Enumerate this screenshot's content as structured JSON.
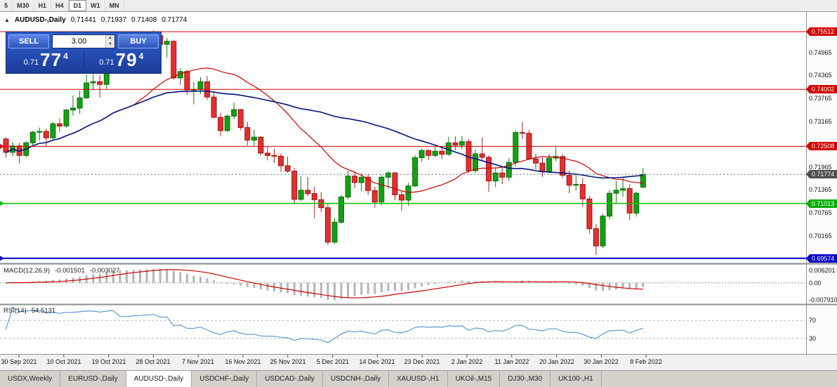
{
  "window": {
    "toolbar": {
      "timeframes": [
        "5",
        "M30",
        "H1",
        "H4",
        "D1",
        "W1",
        "MN"
      ],
      "active_timeframe": "D1"
    }
  },
  "chart": {
    "title": {
      "collapse_icon": "▲",
      "symbol": "AUDUSD-,Daily",
      "open": "0.71441",
      "high": "0.71937",
      "low": "0.71408",
      "close": "0.71774"
    },
    "trade_panel": {
      "sell_label": "SELL",
      "buy_label": "BUY",
      "volume": "3.00",
      "spinner_up": "▲",
      "spinner_down": "▼",
      "sell_price_prefix": "0.71",
      "sell_price_big": "77",
      "sell_price_sup": "4",
      "buy_price_prefix": "0.71",
      "buy_price_big": "79",
      "buy_price_sup": "4"
    }
  },
  "tabs": {
    "items": [
      "USDX,Weekly",
      "EURUSD-,Daily",
      "AUDUSD-,Daily",
      "USDCHF-,Daily",
      "USDCAD-,Daily",
      "USDCNH-,Daily",
      "XAUUSD-,H1",
      "UKOil-,M15",
      "DJ30-,M30",
      "UK100-,H1"
    ],
    "active_index": 2
  },
  "chart_data": {
    "type": "candlestick",
    "symbol": "AUDUSD-",
    "timeframe": "Daily",
    "current_price": 0.71774,
    "ohlc_display": {
      "open": 0.71441,
      "high": 0.71937,
      "low": 0.71408,
      "close": 0.71774
    },
    "y_axis_ticks": [
      "0.74965",
      "0.74365",
      "0.73765",
      "0.73165",
      "0.71965",
      "0.71365",
      "0.70765",
      "0.70165"
    ],
    "price_badges": [
      {
        "value": "0.75512",
        "color": "#d20000"
      },
      {
        "value": "0.74002",
        "color": "#d20000"
      },
      {
        "value": "0.72508",
        "color": "#d20000"
      },
      {
        "value": "0.71774",
        "color": "#4d4d4d"
      },
      {
        "value": "0.71013",
        "color": "#00b000"
      },
      {
        "value": "0.69574",
        "color": "#0000c8"
      }
    ],
    "levels": [
      {
        "price": 0.75512,
        "color": "#d20000",
        "width": 1,
        "marker": false
      },
      {
        "price": 0.74002,
        "color": "#d20000",
        "width": 1,
        "marker": false
      },
      {
        "price": 0.72508,
        "color": "#d20000",
        "width": 1,
        "marker": true
      },
      {
        "price": 0.71013,
        "color": "#00c000",
        "width": 1.5,
        "marker": true
      },
      {
        "price": 0.69574,
        "color": "#0000c8",
        "width": 2,
        "marker": true
      }
    ],
    "x_labels": [
      "30 Sep 2021",
      "10 Oct 2021",
      "19 Oct 2021",
      "28 Oct 2021",
      "7 Nov 2021",
      "16 Nov 2021",
      "25 Nov 2021",
      "5 Dec 2021",
      "14 Dec 2021",
      "23 Dec 2021",
      "2 Jan 2022",
      "11 Jan 2022",
      "20 Jan 2022",
      "30 Jan 2022",
      "8 Feb 2022"
    ],
    "candles": [
      [
        0.727,
        0.7275,
        0.7221,
        0.7235
      ],
      [
        0.7235,
        0.7262,
        0.7225,
        0.7252
      ],
      [
        0.7252,
        0.726,
        0.7206,
        0.7227
      ],
      [
        0.7227,
        0.7265,
        0.7222,
        0.726
      ],
      [
        0.726,
        0.7291,
        0.7254,
        0.7288
      ],
      [
        0.7288,
        0.73,
        0.7266,
        0.729
      ],
      [
        0.729,
        0.7297,
        0.7252,
        0.7273
      ],
      [
        0.7273,
        0.7315,
        0.7268,
        0.731
      ],
      [
        0.731,
        0.7323,
        0.7288,
        0.7304
      ],
      [
        0.7304,
        0.7349,
        0.73,
        0.7346
      ],
      [
        0.7346,
        0.7384,
        0.7332,
        0.7351
      ],
      [
        0.7351,
        0.7397,
        0.7336,
        0.7378
      ],
      [
        0.7378,
        0.7439,
        0.7375,
        0.7417
      ],
      [
        0.7417,
        0.744,
        0.7398,
        0.742
      ],
      [
        0.742,
        0.7437,
        0.7379,
        0.7413
      ],
      [
        0.7413,
        0.7485,
        0.7401,
        0.7474
      ],
      [
        0.7474,
        0.7546,
        0.7462,
        0.7516
      ],
      [
        0.7516,
        0.7526,
        0.7452,
        0.7465
      ],
      [
        0.7465,
        0.749,
        0.745,
        0.7466
      ],
      [
        0.7466,
        0.7506,
        0.746,
        0.749
      ],
      [
        0.749,
        0.7536,
        0.748,
        0.75
      ],
      [
        0.75,
        0.7522,
        0.7463,
        0.7518
      ],
      [
        0.7518,
        0.7555,
        0.751,
        0.7541
      ],
      [
        0.7541,
        0.7547,
        0.7491,
        0.7518
      ],
      [
        0.7518,
        0.7535,
        0.7483,
        0.7526
      ],
      [
        0.7526,
        0.7529,
        0.7426,
        0.743
      ],
      [
        0.743,
        0.7455,
        0.7412,
        0.7447
      ],
      [
        0.7447,
        0.7451,
        0.7387,
        0.7399
      ],
      [
        0.7399,
        0.7419,
        0.7361,
        0.74
      ],
      [
        0.74,
        0.7432,
        0.7388,
        0.742
      ],
      [
        0.742,
        0.7435,
        0.7373,
        0.738
      ],
      [
        0.738,
        0.7395,
        0.7324,
        0.7327
      ],
      [
        0.7327,
        0.7338,
        0.7277,
        0.7292
      ],
      [
        0.7292,
        0.7334,
        0.7288,
        0.733
      ],
      [
        0.733,
        0.7365,
        0.7322,
        0.7347
      ],
      [
        0.7347,
        0.7349,
        0.7293,
        0.73
      ],
      [
        0.73,
        0.7315,
        0.7253,
        0.7267
      ],
      [
        0.7267,
        0.7294,
        0.725,
        0.7275
      ],
      [
        0.7275,
        0.7277,
        0.7227,
        0.7233
      ],
      [
        0.7233,
        0.725,
        0.7214,
        0.7227
      ],
      [
        0.7227,
        0.7244,
        0.7207,
        0.7225
      ],
      [
        0.7225,
        0.7232,
        0.7184,
        0.72
      ],
      [
        0.72,
        0.7224,
        0.7182,
        0.7186
      ],
      [
        0.7186,
        0.7194,
        0.7102,
        0.7112
      ],
      [
        0.7112,
        0.7172,
        0.7108,
        0.7136
      ],
      [
        0.7136,
        0.7171,
        0.712,
        0.7127
      ],
      [
        0.7127,
        0.7145,
        0.7062,
        0.7111
      ],
      [
        0.7111,
        0.7131,
        0.7078,
        0.709
      ],
      [
        0.709,
        0.7102,
        0.6993,
        0.7
      ],
      [
        0.7,
        0.7063,
        0.6995,
        0.7052
      ],
      [
        0.7052,
        0.7124,
        0.7048,
        0.7118
      ],
      [
        0.7118,
        0.7187,
        0.7112,
        0.7173
      ],
      [
        0.7173,
        0.7185,
        0.7141,
        0.7156
      ],
      [
        0.7156,
        0.718,
        0.7133,
        0.717
      ],
      [
        0.717,
        0.7178,
        0.7123,
        0.7135
      ],
      [
        0.7135,
        0.7145,
        0.709,
        0.7105
      ],
      [
        0.7105,
        0.7176,
        0.7096,
        0.717
      ],
      [
        0.717,
        0.7186,
        0.7139,
        0.7181
      ],
      [
        0.7181,
        0.7184,
        0.711,
        0.7124
      ],
      [
        0.7124,
        0.7133,
        0.7082,
        0.711
      ],
      [
        0.711,
        0.7155,
        0.7095,
        0.7147
      ],
      [
        0.7147,
        0.7228,
        0.7144,
        0.7221
      ],
      [
        0.7221,
        0.7245,
        0.721,
        0.724
      ],
      [
        0.724,
        0.7243,
        0.7215,
        0.7227
      ],
      [
        0.7227,
        0.725,
        0.7222,
        0.7238
      ],
      [
        0.7238,
        0.7249,
        0.7217,
        0.723
      ],
      [
        0.723,
        0.7275,
        0.7226,
        0.726
      ],
      [
        0.726,
        0.7277,
        0.724,
        0.7254
      ],
      [
        0.7254,
        0.7278,
        0.7244,
        0.7263
      ],
      [
        0.7263,
        0.727,
        0.7181,
        0.7187
      ],
      [
        0.7187,
        0.7242,
        0.7181,
        0.7231
      ],
      [
        0.7231,
        0.7274,
        0.7214,
        0.7222
      ],
      [
        0.7222,
        0.7227,
        0.7131,
        0.716
      ],
      [
        0.716,
        0.7197,
        0.7144,
        0.7181
      ],
      [
        0.7181,
        0.7194,
        0.7152,
        0.717
      ],
      [
        0.717,
        0.722,
        0.716,
        0.7209
      ],
      [
        0.7209,
        0.7293,
        0.72,
        0.7287
      ],
      [
        0.7287,
        0.7314,
        0.727,
        0.7285
      ],
      [
        0.7285,
        0.7293,
        0.7215,
        0.7218
      ],
      [
        0.7218,
        0.7232,
        0.7191,
        0.7207
      ],
      [
        0.7207,
        0.7221,
        0.7171,
        0.7184
      ],
      [
        0.7184,
        0.723,
        0.718,
        0.722
      ],
      [
        0.722,
        0.7249,
        0.7212,
        0.7224
      ],
      [
        0.7224,
        0.723,
        0.7167,
        0.7175
      ],
      [
        0.7175,
        0.7187,
        0.7128,
        0.7149
      ],
      [
        0.7149,
        0.718,
        0.7135,
        0.7151
      ],
      [
        0.7151,
        0.7168,
        0.7094,
        0.7113
      ],
      [
        0.7113,
        0.7121,
        0.7022,
        0.7035
      ],
      [
        0.7035,
        0.7047,
        0.6966,
        0.699
      ],
      [
        0.699,
        0.7074,
        0.6985,
        0.7068
      ],
      [
        0.7068,
        0.7136,
        0.706,
        0.7128
      ],
      [
        0.7128,
        0.716,
        0.71,
        0.7136
      ],
      [
        0.7136,
        0.7169,
        0.7119,
        0.714
      ],
      [
        0.714,
        0.7152,
        0.7058,
        0.7076
      ],
      [
        0.7076,
        0.7132,
        0.7067,
        0.7128
      ],
      [
        0.71441,
        0.71937,
        0.71408,
        0.71774
      ]
    ],
    "candle_colors": {
      "up": "#14a014",
      "down": "#e23030"
    },
    "moving_averages": [
      {
        "name": "fast",
        "period": 20,
        "color": "#cc0000"
      },
      {
        "name": "slow",
        "period": 45,
        "color": "#00137e"
      }
    ],
    "indicators": {
      "macd": {
        "label": "MACD(12,26,9)",
        "main_value": "-0.001501",
        "signal_value": "-0.003027",
        "fast": 12,
        "slow": 26,
        "signal": 9,
        "axis_labels": [
          "0.006201",
          "0.00",
          "-0.007910"
        ],
        "histogram_color": "#b5b5b5",
        "signal_color": "#cc0000"
      },
      "rsi": {
        "label": "RSI(14)",
        "value": "54.5131",
        "period": 14,
        "levels": [
          "70",
          "30"
        ],
        "line_color": "#5e9ad3"
      }
    }
  }
}
